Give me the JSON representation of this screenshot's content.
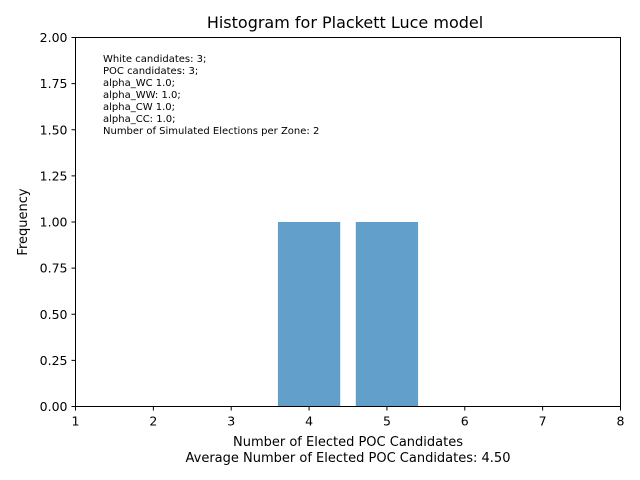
{
  "chart_data": {
    "type": "bar",
    "title": "Histogram for Plackett Luce model",
    "xlabel": "Number of Elected POC Candidates",
    "xlabel_line2": "Average Number of Elected POC Candidates: 4.50",
    "ylabel": "Frequency",
    "xlim": [
      1,
      8
    ],
    "ylim": [
      0,
      2
    ],
    "x_ticks": [
      1,
      2,
      3,
      4,
      5,
      6,
      7,
      8
    ],
    "y_ticks": [
      0.0,
      0.25,
      0.5,
      0.75,
      1.0,
      1.25,
      1.5,
      1.75,
      2.0
    ],
    "y_tick_labels": [
      "0.00",
      "0.25",
      "0.50",
      "0.75",
      "1.00",
      "1.25",
      "1.50",
      "1.75",
      "2.00"
    ],
    "bars": [
      {
        "x": 4,
        "value": 1
      },
      {
        "x": 5,
        "value": 1
      }
    ],
    "bar_width": 0.8,
    "bar_color": "#62a0cb",
    "grid": false,
    "annotation_lines": [
      "White candidates: 3;",
      "POC candidates: 3;",
      "alpha_WC 1.0;",
      "alpha_WW: 1.0;",
      "alpha_CW 1.0;",
      "alpha_CC: 1.0;",
      "Number of Simulated Elections per Zone: 2"
    ]
  }
}
